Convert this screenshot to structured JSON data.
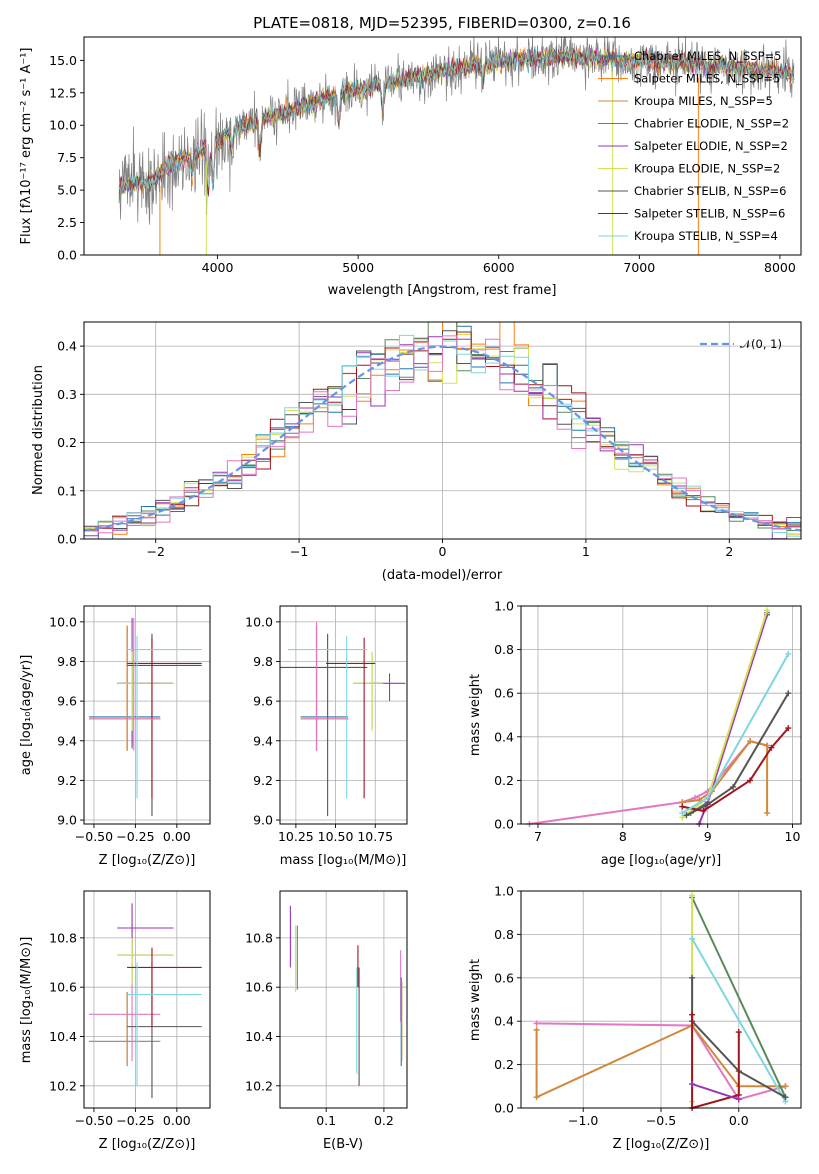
{
  "chart_data": [
    {
      "type": "line",
      "title": "PLATE=0818, MJD=52395, FIBERID=0300, z=0.16",
      "xlabel": "wavelength [Angstrom, rest frame]",
      "ylabel": "Flux [fλ10⁻¹⁷ erg cm⁻² s⁻¹ A⁻¹]",
      "xlim": [
        3050,
        8150
      ],
      "ylim": [
        0,
        16.8
      ],
      "xticks": [
        4000,
        5000,
        6000,
        7000,
        8000
      ],
      "yticks": [
        0.0,
        2.5,
        5.0,
        7.5,
        10.0,
        12.5,
        15.0
      ],
      "ytick_labels": [
        "0.0",
        "2.5",
        "5.0",
        "7.5",
        "10.0",
        "12.5",
        "15.0"
      ],
      "legend_position": "upper-right",
      "series": [
        {
          "name": "Chabrier MILES, N_SSP=5",
          "color": "#1f77b4"
        },
        {
          "name": "Salpeter MILES, N_SSP=5",
          "color": "#ff7f0e"
        },
        {
          "name": "Kroupa MILES, N_SSP=5",
          "color": "#d2883a"
        },
        {
          "name": "Chabrier ELODIE, N_SSP=2",
          "color": "#5a8a5a"
        },
        {
          "name": "Salpeter ELODIE, N_SSP=2",
          "color": "#9a35b8"
        },
        {
          "name": "Kroupa ELODIE, N_SSP=2",
          "color": "#d4e157"
        },
        {
          "name": "Chabrier STELIB, N_SSP=6",
          "color": "#555555"
        },
        {
          "name": "Salpeter STELIB, N_SSP=6",
          "color": "#a0161c"
        },
        {
          "name": "Kroupa STELIB, N_SSP=4",
          "color": "#7fd6e0"
        }
      ],
      "spectrum_anchors": {
        "x": [
          3300,
          3500,
          3650,
          3800,
          3950,
          4100,
          4300,
          4500,
          4700,
          4900,
          5100,
          5300,
          5500,
          5700,
          5900,
          6100,
          6300,
          6500,
          6700,
          6900,
          7100,
          7300,
          7500,
          7700,
          7900,
          8050
        ],
        "y": [
          5.3,
          5.6,
          6.8,
          7.6,
          8.4,
          9.6,
          10.4,
          11.1,
          11.8,
          12.5,
          13.0,
          13.5,
          13.9,
          14.4,
          14.8,
          15.0,
          15.2,
          15.3,
          15.2,
          15.0,
          14.9,
          14.8,
          14.6,
          14.4,
          14.2,
          14.0
        ]
      }
    },
    {
      "type": "line",
      "xlabel": "(data-model)/error",
      "ylabel": "Normed distribution",
      "xlim": [
        -2.5,
        2.5
      ],
      "ylim": [
        0,
        0.45
      ],
      "xticks": [
        -2,
        -1,
        0,
        1,
        2
      ],
      "yticks": [
        0.0,
        0.1,
        0.2,
        0.3,
        0.4
      ],
      "xtick_labels": [
        "−2",
        "−1",
        "0",
        "1",
        "2"
      ],
      "ytick_labels": [
        "0.0",
        "0.1",
        "0.2",
        "0.3",
        "0.4"
      ],
      "reference_curve": {
        "name": "𝒩(0, 1)",
        "color": "#6495ed"
      },
      "bin_width": 0.1,
      "grid": true
    },
    {
      "type": "scatter",
      "xlabel": "Z [log₁₀(Z/Z⊙)]",
      "ylabel": "age  [log₁₀(age/yr)]",
      "xlim": [
        -0.56,
        0.2
      ],
      "ylim": [
        8.98,
        10.08
      ],
      "xticks": [
        -0.5,
        -0.25,
        0.0
      ],
      "yticks": [
        9.0,
        9.2,
        9.4,
        9.6,
        9.8,
        10.0
      ],
      "xtick_labels": [
        "−0.50",
        "−0.25",
        "0.00"
      ],
      "ytick_labels": [
        "9.0",
        "9.2",
        "9.4",
        "9.6",
        "9.8",
        "10.0"
      ],
      "errorbars": [
        {
          "c": "#1f77b4",
          "x": -0.3,
          "y": 9.52,
          "xe": [
            -0.53,
            -0.1
          ],
          "ye": [
            9.35,
            9.98
          ]
        },
        {
          "c": "#ff7f0e",
          "x": -0.3,
          "y": 9.51,
          "xe": [
            -0.53,
            -0.1
          ],
          "ye": [
            9.35,
            9.98
          ]
        },
        {
          "c": "#d2883a",
          "x": -0.3,
          "y": 9.51,
          "xe": [
            -0.53,
            -0.1
          ],
          "ye": [
            9.35,
            9.98
          ]
        },
        {
          "c": "#5a8a5a",
          "x": -0.27,
          "y": 9.69,
          "xe": [
            -0.36,
            -0.02
          ],
          "ye": [
            9.36,
            9.84
          ]
        },
        {
          "c": "#9a35b8",
          "x": -0.27,
          "y": 9.69,
          "xe": [
            -0.36,
            -0.02
          ],
          "ye": [
            9.37,
            10.02
          ]
        },
        {
          "c": "#d4e157",
          "x": -0.27,
          "y": 9.69,
          "xe": [
            -0.36,
            -0.02
          ],
          "ye": [
            9.45,
            9.85
          ]
        },
        {
          "c": "#555555",
          "x": -0.15,
          "y": 9.78,
          "xe": [
            -0.3,
            0.15
          ],
          "ye": [
            9.02,
            9.94
          ]
        },
        {
          "c": "#a0161c",
          "x": -0.15,
          "y": 9.79,
          "xe": [
            -0.3,
            0.15
          ],
          "ye": [
            9.11,
            9.92
          ]
        },
        {
          "c": "#7fd6e0",
          "x": -0.24,
          "y": 9.86,
          "xe": [
            -0.3,
            0.15
          ],
          "ye": [
            9.11,
            9.93
          ]
        },
        {
          "c": "#e377c2",
          "x": -0.26,
          "y": 9.51,
          "xe": [
            -0.53,
            -0.1
          ],
          "ye": [
            9.35,
            10.02
          ]
        }
      ]
    },
    {
      "type": "scatter",
      "xlabel": "mass [log₁₀(M/M⊙)]",
      "xlim": [
        10.15,
        10.95
      ],
      "ylim": [
        8.98,
        10.08
      ],
      "xticks": [
        10.25,
        10.5,
        10.75
      ],
      "yticks": [
        9.0,
        9.2,
        9.4,
        9.6,
        9.8,
        10.0
      ],
      "xtick_labels": [
        "10.25",
        "10.50",
        "10.75"
      ],
      "ytick_labels": [
        "9.0",
        "9.2",
        "9.4",
        "9.6",
        "9.8",
        "10.0"
      ],
      "errorbars": [
        {
          "c": "#1f77b4",
          "x": 10.38,
          "y": 9.52,
          "xe": [
            10.28,
            10.58
          ],
          "ye": [
            9.35,
            9.98
          ]
        },
        {
          "c": "#ff7f0e",
          "x": 10.38,
          "y": 9.51,
          "xe": [
            10.28,
            10.58
          ],
          "ye": [
            9.35,
            9.98
          ]
        },
        {
          "c": "#d2883a",
          "x": 10.38,
          "y": 9.51,
          "xe": [
            10.28,
            10.58
          ],
          "ye": [
            9.35,
            9.98
          ]
        },
        {
          "c": "#5a8a5a",
          "x": 10.73,
          "y": 9.69,
          "xe": [
            10.61,
            10.8
          ],
          "ye": [
            9.46,
            9.84
          ]
        },
        {
          "c": "#9a35b8",
          "x": 10.84,
          "y": 9.69,
          "xe": [
            10.72,
            10.94
          ],
          "ye": [
            9.6,
            9.74
          ]
        },
        {
          "c": "#d4e157",
          "x": 10.73,
          "y": 9.69,
          "xe": [
            10.61,
            10.8
          ],
          "ye": [
            9.45,
            9.85
          ]
        },
        {
          "c": "#555555",
          "x": 10.45,
          "y": 9.77,
          "xe": [
            10.15,
            10.7
          ],
          "ye": [
            9.02,
            9.94
          ]
        },
        {
          "c": "#a0161c",
          "x": 10.68,
          "y": 9.79,
          "xe": [
            10.44,
            10.75
          ],
          "ye": [
            9.11,
            9.92
          ]
        },
        {
          "c": "#7fd6e0",
          "x": 10.57,
          "y": 9.86,
          "xe": [
            10.2,
            10.7
          ],
          "ye": [
            9.11,
            9.93
          ]
        },
        {
          "c": "#e377c2",
          "x": 10.38,
          "y": 9.51,
          "xe": [
            10.28,
            10.58
          ],
          "ye": [
            9.35,
            10.0
          ]
        }
      ]
    },
    {
      "type": "line",
      "xlabel": "age  [log₁₀(age/yr)]",
      "ylabel": "mass weight",
      "xlim": [
        6.8,
        10.1
      ],
      "ylim": [
        0,
        1.0
      ],
      "xticks": [
        7,
        8,
        9,
        10
      ],
      "yticks": [
        0.0,
        0.2,
        0.4,
        0.6,
        0.8,
        1.0
      ],
      "ytick_labels": [
        "0.0",
        "0.2",
        "0.4",
        "0.6",
        "0.8",
        "1.0"
      ],
      "series": [
        {
          "c": "#e377c2",
          "x": [
            6.9,
            8.7,
            8.85,
            9.0,
            9.5,
            9.7
          ],
          "y": [
            0.0,
            0.1,
            0.12,
            0.15,
            0.38,
            0.36
          ]
        },
        {
          "c": "#d2883a",
          "x": [
            8.7,
            8.9,
            9.05,
            9.5,
            9.7,
            9.7
          ],
          "y": [
            0.1,
            0.11,
            0.15,
            0.38,
            0.36,
            0.05
          ]
        },
        {
          "c": "#5a8a5a",
          "x": [
            8.8,
            9.0,
            9.7
          ],
          "y": [
            0.05,
            0.1,
            0.97
          ]
        },
        {
          "c": "#9a35b8",
          "x": [
            8.9,
            9.0,
            9.7
          ],
          "y": [
            0.0,
            0.1,
            0.96
          ]
        },
        {
          "c": "#d4e157",
          "x": [
            8.7,
            9.0,
            9.7
          ],
          "y": [
            0.03,
            0.12,
            0.98
          ]
        },
        {
          "c": "#555555",
          "x": [
            8.75,
            9.0,
            9.3,
            9.95
          ],
          "y": [
            0.04,
            0.09,
            0.17,
            0.6
          ]
        },
        {
          "c": "#a0161c",
          "x": [
            8.7,
            8.95,
            9.5,
            9.75,
            9.95
          ],
          "y": [
            0.08,
            0.06,
            0.2,
            0.35,
            0.44
          ]
        },
        {
          "c": "#7fd6e0",
          "x": [
            8.7,
            9.0,
            9.95
          ],
          "y": [
            0.05,
            0.12,
            0.78
          ]
        }
      ]
    },
    {
      "type": "scatter",
      "xlabel": "Z [log₁₀(Z/Z⊙)]",
      "ylabel": "mass [log₁₀(M/M⊙)]",
      "xlim": [
        -0.56,
        0.2
      ],
      "ylim": [
        10.11,
        10.99
      ],
      "xticks": [
        -0.5,
        -0.25,
        0.0
      ],
      "yticks": [
        10.2,
        10.4,
        10.6,
        10.8
      ],
      "xtick_labels": [
        "−0.50",
        "−0.25",
        "0.00"
      ],
      "ytick_labels": [
        "10.2",
        "10.4",
        "10.6",
        "10.8"
      ],
      "errorbars": [
        {
          "c": "#1f77b4",
          "x": -0.3,
          "y": 10.38,
          "xe": [
            -0.53,
            -0.1
          ],
          "ye": [
            10.28,
            10.58
          ]
        },
        {
          "c": "#d2883a",
          "x": -0.3,
          "y": 10.38,
          "xe": [
            -0.53,
            -0.1
          ],
          "ye": [
            10.28,
            10.58
          ]
        },
        {
          "c": "#e377c2",
          "x": -0.27,
          "y": 10.49,
          "xe": [
            -0.53,
            -0.1
          ],
          "ye": [
            10.3,
            10.7
          ]
        },
        {
          "c": "#5a8a5a",
          "x": -0.27,
          "y": 10.73,
          "xe": [
            -0.36,
            -0.02
          ],
          "ye": [
            10.61,
            10.8
          ]
        },
        {
          "c": "#9a35b8",
          "x": -0.27,
          "y": 10.84,
          "xe": [
            -0.36,
            -0.02
          ],
          "ye": [
            10.72,
            10.94
          ]
        },
        {
          "c": "#d4e157",
          "x": -0.27,
          "y": 10.73,
          "xe": [
            -0.36,
            -0.02
          ],
          "ye": [
            10.61,
            10.8
          ]
        },
        {
          "c": "#555555",
          "x": -0.15,
          "y": 10.44,
          "xe": [
            -0.3,
            0.15
          ],
          "ye": [
            10.15,
            10.7
          ]
        },
        {
          "c": "#a0161c",
          "x": -0.15,
          "y": 10.68,
          "xe": [
            -0.3,
            0.15
          ],
          "ye": [
            10.44,
            10.76
          ]
        },
        {
          "c": "#7fd6e0",
          "x": -0.24,
          "y": 10.57,
          "xe": [
            -0.3,
            0.15
          ],
          "ye": [
            10.2,
            10.7
          ]
        }
      ]
    },
    {
      "type": "scatter",
      "xlabel": "E(B-V)",
      "xlim": [
        0.02,
        0.24
      ],
      "ylim": [
        10.11,
        10.99
      ],
      "xticks": [
        0.1,
        0.2
      ],
      "yticks": [
        10.2,
        10.4,
        10.6,
        10.8
      ],
      "xtick_labels": [
        "0.1",
        "0.2"
      ],
      "ytick_labels": [
        "10.2",
        "10.4",
        "10.6",
        "10.8"
      ],
      "vbars": [
        {
          "c": "#9a35b8",
          "x": 0.038,
          "ye": [
            10.68,
            10.93
          ]
        },
        {
          "c": "#d4e157",
          "x": 0.047,
          "ye": [
            10.58,
            10.85
          ]
        },
        {
          "c": "#5a8a5a",
          "x": 0.05,
          "ye": [
            10.59,
            10.85
          ]
        },
        {
          "c": "#555555",
          "x": 0.157,
          "ye": [
            10.2,
            10.68
          ]
        },
        {
          "c": "#7fd6e0",
          "x": 0.153,
          "ye": [
            10.25,
            10.68
          ]
        },
        {
          "c": "#a0161c",
          "x": 0.155,
          "ye": [
            10.6,
            10.77
          ]
        },
        {
          "c": "#e377c2",
          "x": 0.229,
          "ye": [
            10.46,
            10.75
          ]
        },
        {
          "c": "#1f77b4",
          "x": 0.23,
          "ye": [
            10.28,
            10.64
          ]
        },
        {
          "c": "#d2883a",
          "x": 0.231,
          "ye": [
            10.3,
            10.62
          ]
        }
      ]
    },
    {
      "type": "line",
      "xlabel": "Z [log₁₀(Z/Z⊙)]",
      "ylabel": "mass weight",
      "xlim": [
        -1.4,
        0.4
      ],
      "ylim": [
        0,
        1.0
      ],
      "xticks": [
        -1.0,
        -0.5,
        0.0
      ],
      "yticks": [
        0.0,
        0.2,
        0.4,
        0.6,
        0.8,
        1.0
      ],
      "xtick_labels": [
        "−1.0",
        "−0.5",
        "0.0"
      ],
      "ytick_labels": [
        "0.0",
        "0.2",
        "0.4",
        "0.6",
        "0.8",
        "1.0"
      ],
      "series": [
        {
          "c": "#e377c2",
          "x": [
            -1.3,
            -0.3,
            0.0,
            0.3
          ],
          "y": [
            0.39,
            0.38,
            0.04,
            0.1
          ]
        },
        {
          "c": "#d2883a",
          "x": [
            -1.3,
            -1.3,
            -0.3,
            0.0,
            0.3
          ],
          "y": [
            0.36,
            0.05,
            0.38,
            0.1,
            0.1
          ]
        },
        {
          "c": "#5a8a5a",
          "x": [
            -0.3,
            0.3
          ],
          "y": [
            0.97,
            0.05
          ]
        },
        {
          "c": "#d4e157",
          "x": [
            -0.3,
            -0.3
          ],
          "y": [
            0.98,
            0.03
          ]
        },
        {
          "c": "#7fd6e0",
          "x": [
            -0.3,
            0.3
          ],
          "y": [
            0.78,
            0.03
          ]
        },
        {
          "c": "#555555",
          "x": [
            -0.3,
            -0.3,
            0.0,
            0.3
          ],
          "y": [
            0.6,
            0.4,
            0.17,
            0.05
          ]
        },
        {
          "c": "#a0161c",
          "x": [
            -0.3,
            -0.3,
            0.0,
            0.0
          ],
          "y": [
            0.43,
            0.0,
            0.06,
            0.35
          ]
        },
        {
          "c": "#9a35b8",
          "x": [
            -0.3,
            0.0
          ],
          "y": [
            0.11,
            0.04
          ]
        }
      ]
    }
  ]
}
